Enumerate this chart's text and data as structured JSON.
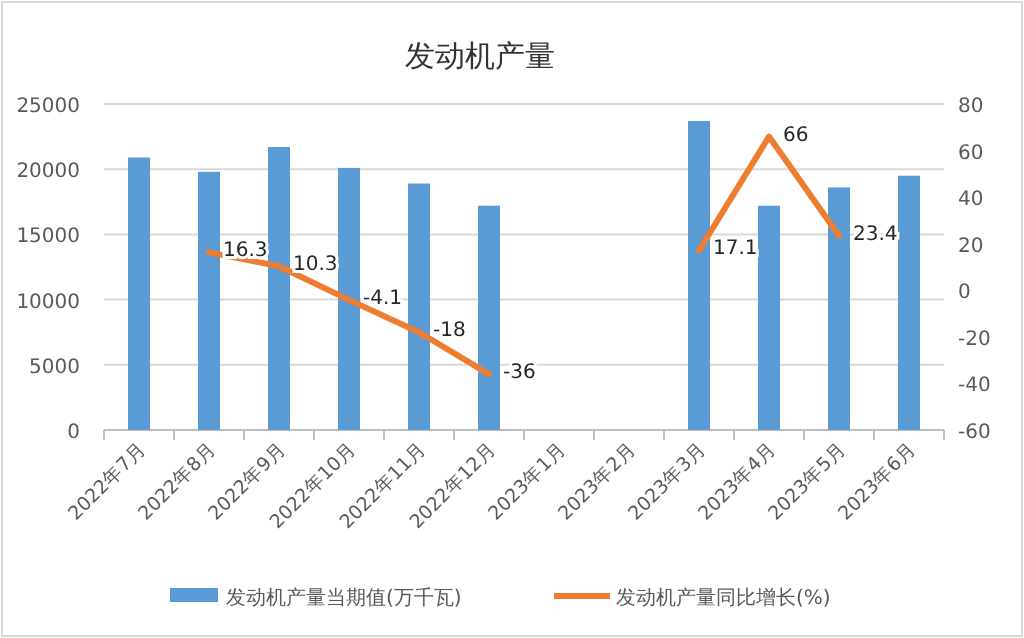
{
  "chart_data": {
    "type": "bar",
    "title": "发动机产量",
    "categories": [
      "2022年7月",
      "2022年8月",
      "2022年9月",
      "2022年10月",
      "2022年11月",
      "2022年12月",
      "2023年1月",
      "2023年2月",
      "2023年3月",
      "2023年4月",
      "2023年5月",
      "2023年6月"
    ],
    "series": [
      {
        "name": "发动机产量当期值(万千瓦)",
        "color": "#5b9bd5",
        "values": [
          20900,
          19800,
          21700,
          20100,
          18900,
          17200,
          null,
          null,
          23700,
          17200,
          18600,
          19500
        ]
      },
      {
        "name": "发动机产量同比增长(%)",
        "type": "line",
        "axis": "y2",
        "color": "#ed7d31",
        "values": [
          null,
          16.3,
          10.3,
          -4.1,
          -18,
          -36,
          null,
          null,
          17.1,
          66,
          23.4,
          null
        ],
        "value_labels": [
          null,
          "16.3",
          "10.3",
          "-4.1",
          "-18",
          "-36",
          null,
          null,
          "17.1",
          "66",
          "23.4",
          null
        ]
      }
    ],
    "ylim": [
      0,
      25000
    ],
    "yticks": [
      0,
      5000,
      10000,
      15000,
      20000,
      25000
    ],
    "y2lim": [
      -60,
      80
    ],
    "y2ticks": [
      -60,
      -40,
      -20,
      0,
      20,
      40,
      60,
      80
    ],
    "grid": "y",
    "legend": "bottom"
  }
}
